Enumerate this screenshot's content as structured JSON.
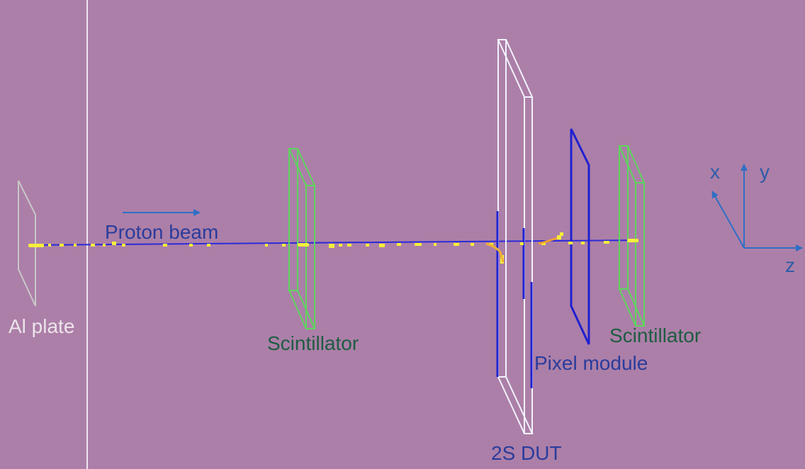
{
  "labels": {
    "al_plate": "Al plate",
    "proton_beam": "Proton beam",
    "scintillator_1": "Scintillator",
    "scintillator_2": "Scintillator",
    "pixel_module": "Pixel module",
    "dut": "2S DUT"
  },
  "axes": {
    "x": "x",
    "y": "y",
    "z": "z"
  },
  "colors": {
    "background": "#ac7fa8",
    "beam_line": "#2b2bd9",
    "hits": "#f5f03a",
    "scintillator": "#5cd65c",
    "dut": "#f2f2ff",
    "pixel_module": "#2020d0",
    "al_plate": "#c8c8c8",
    "axes": "#2f6fc4"
  }
}
